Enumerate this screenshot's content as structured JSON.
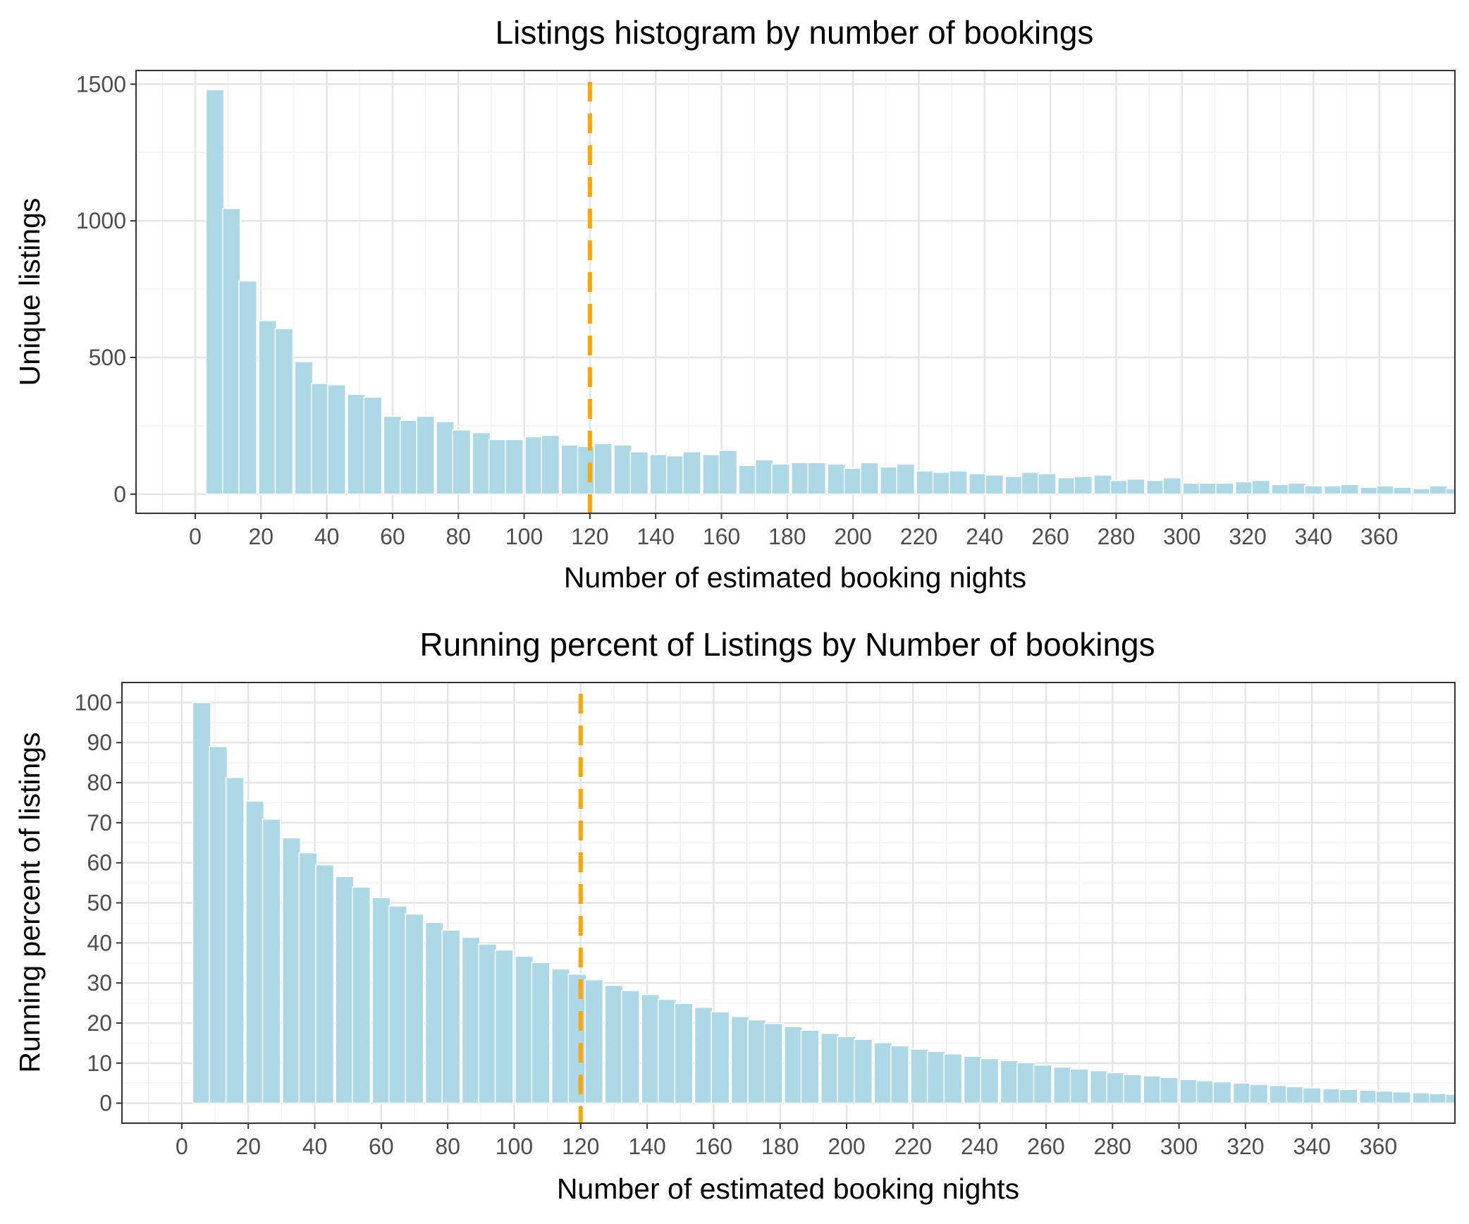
{
  "colors": {
    "bar": "#add8e6",
    "bar_outline": "#ffffff",
    "reference_line": "#ffa500",
    "grid_major": "#e5e5e5",
    "grid_minor": "#f2f2f2",
    "panel_border": "#333333",
    "tick_text": "#4d4d4d"
  },
  "chart_data": [
    {
      "type": "bar",
      "title": "Listings histogram by number of bookings",
      "xlabel": "Number of estimated booking nights",
      "ylabel": "Unique listings",
      "xlim": [
        -18,
        383
      ],
      "ylim": [
        -70,
        1550
      ],
      "x_ticks": [
        0,
        20,
        40,
        60,
        80,
        100,
        120,
        140,
        160,
        180,
        200,
        220,
        240,
        260,
        280,
        300,
        320,
        340,
        360
      ],
      "y_ticks": [
        0,
        500,
        1000,
        1500
      ],
      "bin_width": 5.4,
      "reference_line": {
        "x": 120,
        "style": "dashed"
      },
      "grid": true,
      "legend": "none",
      "x": [
        6,
        11,
        16,
        22,
        27,
        33,
        38,
        43,
        49,
        54,
        60,
        65,
        70,
        76,
        81,
        87,
        92,
        97,
        103,
        108,
        114,
        119,
        124,
        130,
        135,
        141,
        146,
        151,
        157,
        162,
        168,
        173,
        178,
        184,
        189,
        195,
        200,
        205,
        211,
        216,
        222,
        227,
        232,
        238,
        243,
        249,
        254,
        259,
        265,
        270,
        276,
        281,
        286,
        292,
        297,
        303,
        308,
        313,
        319,
        324,
        330,
        335,
        340,
        346,
        351,
        357,
        362,
        367,
        373,
        378,
        383
      ],
      "values": [
        1480,
        1045,
        780,
        635,
        605,
        485,
        405,
        400,
        365,
        355,
        285,
        270,
        285,
        265,
        235,
        225,
        200,
        200,
        210,
        215,
        180,
        175,
        185,
        180,
        155,
        145,
        140,
        155,
        145,
        160,
        105,
        125,
        110,
        115,
        115,
        110,
        95,
        115,
        100,
        110,
        85,
        80,
        85,
        75,
        70,
        65,
        80,
        75,
        60,
        65,
        70,
        50,
        55,
        50,
        60,
        40,
        40,
        40,
        45,
        50,
        35,
        40,
        30,
        30,
        35,
        25,
        30,
        25,
        20,
        30,
        20
      ]
    },
    {
      "type": "bar",
      "title": "Running percent of Listings by Number of bookings",
      "xlabel": "Number of estimated booking nights",
      "ylabel": "Running percent of listings",
      "xlim": [
        -18,
        383
      ],
      "ylim": [
        -5,
        105
      ],
      "x_ticks": [
        0,
        20,
        40,
        60,
        80,
        100,
        120,
        140,
        160,
        180,
        200,
        220,
        240,
        260,
        280,
        300,
        320,
        340,
        360
      ],
      "y_ticks": [
        0,
        10,
        20,
        30,
        40,
        50,
        60,
        70,
        80,
        90,
        100
      ],
      "bin_width": 5.4,
      "reference_line": {
        "x": 120,
        "style": "dashed"
      },
      "grid": true,
      "legend": "none",
      "x": [
        6,
        11,
        16,
        22,
        27,
        33,
        38,
        43,
        49,
        54,
        60,
        65,
        70,
        76,
        81,
        87,
        92,
        97,
        103,
        108,
        114,
        119,
        124,
        130,
        135,
        141,
        146,
        151,
        157,
        162,
        168,
        173,
        178,
        184,
        189,
        195,
        200,
        205,
        211,
        216,
        222,
        227,
        232,
        238,
        243,
        249,
        254,
        259,
        265,
        270,
        276,
        281,
        286,
        292,
        297,
        303,
        308,
        313,
        319,
        324,
        330,
        335,
        340,
        346,
        351,
        357,
        362,
        367,
        373,
        378,
        383
      ],
      "values": [
        100,
        89,
        81.3,
        75.4,
        70.9,
        66.2,
        62.5,
        59.5,
        56.6,
        53.9,
        51.3,
        49.2,
        47.2,
        45.1,
        43.2,
        41.4,
        39.7,
        38.2,
        36.7,
        35.1,
        33.5,
        32.2,
        30.8,
        29.4,
        28.1,
        27.1,
        25.9,
        24.9,
        23.9,
        22.8,
        21.6,
        20.8,
        19.9,
        19.1,
        18.2,
        17.4,
        16.6,
        15.9,
        15.1,
        14.3,
        13.5,
        12.9,
        12.3,
        11.7,
        11.1,
        10.6,
        10.1,
        9.5,
        9,
        8.5,
        8.1,
        7.6,
        7.1,
        6.8,
        6.4,
        5.9,
        5.6,
        5.3,
        5,
        4.7,
        4.4,
        4.1,
        3.8,
        3.6,
        3.4,
        3.2,
        3,
        2.8,
        2.6,
        2.4,
        2.2
      ]
    }
  ]
}
